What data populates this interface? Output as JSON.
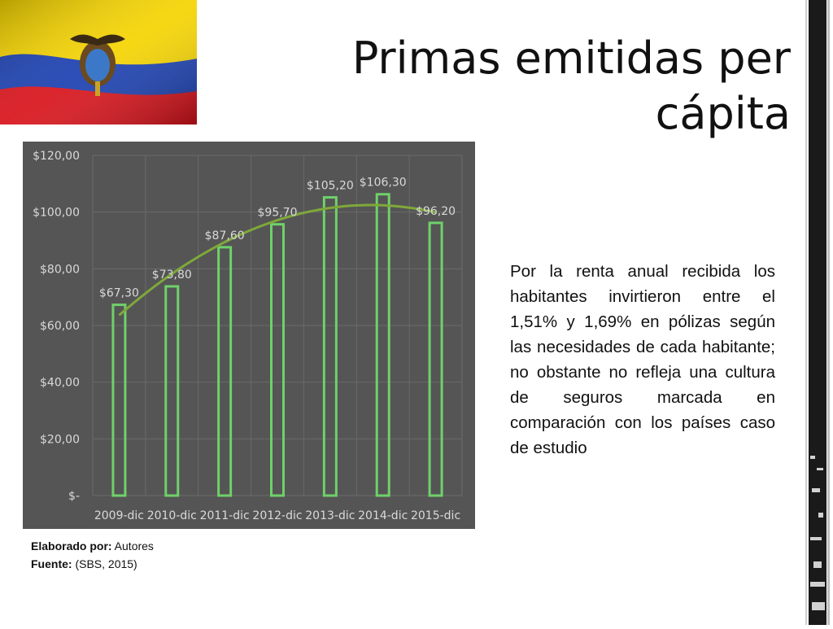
{
  "slide": {
    "title": "Primas emitidas per cápita",
    "description": "Por la renta anual recibida los habitantes invirtieron entre el 1,51% y 1,69% en pólizas según las necesidades de cada habitante; no obstante no refleja una cultura de seguros marcada en comparación con los países caso de estudio",
    "credits": {
      "author_label": "Elaborado por:",
      "author_value": " Autores",
      "source_label": "Fuente:",
      "source_value": " (SBS, 2015)"
    },
    "flag_icon": "ecuador-flag-icon"
  },
  "colors": {
    "chart_background": "#555555",
    "bar_outline": "#6fd16a",
    "trendline": "#7fa83a",
    "axis_text": "#d9d9d9",
    "gridline": "#6a6a6a"
  },
  "chart_data": {
    "type": "bar",
    "categories": [
      "2009-dic",
      "2010-dic",
      "2011-dic",
      "2012-dic",
      "2013-dic",
      "2014-dic",
      "2015-dic"
    ],
    "values": [
      67.3,
      73.8,
      87.6,
      95.7,
      105.2,
      106.3,
      96.2
    ],
    "data_labels": [
      "$67,30",
      "$73,80",
      "$87,60",
      "$95,70",
      "$105,20",
      "$106,30",
      "$96,20"
    ],
    "yticks": [
      0,
      20,
      40,
      60,
      80,
      100,
      120
    ],
    "ytick_labels": [
      "$-",
      "$20,00",
      "$40,00",
      "$60,00",
      "$80,00",
      "$100,00",
      "$120,00"
    ],
    "ylim": [
      0,
      120
    ],
    "trendline": "polynomial",
    "grid": true,
    "legend": "none",
    "title": "",
    "xlabel": "",
    "ylabel": ""
  }
}
